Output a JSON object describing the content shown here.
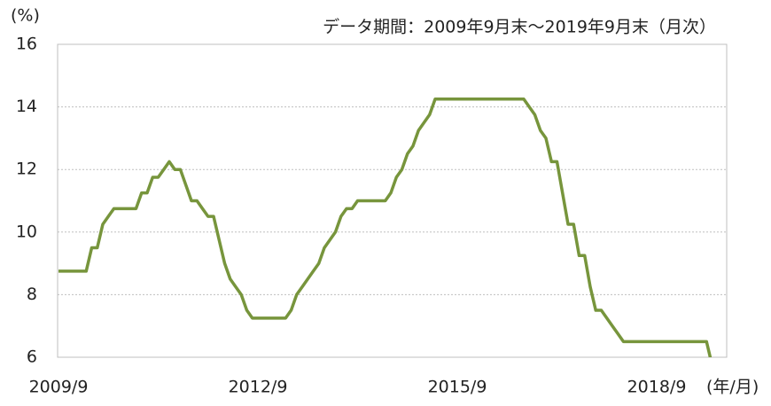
{
  "chart_data": {
    "type": "line",
    "subtitle": "データ期間：2009年9月末～2019年9月末（月次）",
    "y_label": "(%)",
    "x_label": "(年/月)",
    "categories": [
      "2009/9",
      null,
      null,
      null,
      null,
      null,
      null,
      null,
      null,
      null,
      null,
      null,
      null,
      null,
      null,
      null,
      null,
      null,
      null,
      null,
      null,
      null,
      null,
      null,
      null,
      null,
      null,
      null,
      null,
      null,
      null,
      null,
      null,
      null,
      null,
      null,
      "2012/9",
      null,
      null,
      null,
      null,
      null,
      null,
      null,
      null,
      null,
      null,
      null,
      null,
      null,
      null,
      null,
      null,
      null,
      null,
      null,
      null,
      null,
      null,
      null,
      null,
      null,
      null,
      null,
      null,
      null,
      null,
      null,
      null,
      null,
      null,
      null,
      "2015/9",
      null,
      null,
      null,
      null,
      null,
      null,
      null,
      null,
      null,
      null,
      null,
      null,
      null,
      null,
      null,
      null,
      null,
      null,
      null,
      null,
      null,
      null,
      null,
      null,
      null,
      null,
      null,
      null,
      null,
      null,
      null,
      null,
      null,
      null,
      null,
      "2018/9",
      null,
      null,
      null,
      null,
      null,
      null,
      null,
      null,
      null,
      null,
      null,
      null
    ],
    "series": [
      {
        "color": "#77953c",
        "values": [
          8.75,
          8.75,
          8.75,
          8.75,
          8.75,
          8.75,
          9.5,
          9.5,
          10.25,
          10.5,
          10.75,
          10.75,
          10.75,
          10.75,
          10.75,
          11.25,
          11.25,
          11.75,
          11.75,
          12.0,
          12.25,
          12.0,
          12.0,
          11.5,
          11.0,
          11.0,
          10.75,
          10.5,
          10.5,
          9.75,
          9.0,
          8.5,
          8.25,
          8.0,
          7.5,
          7.25,
          7.25,
          7.25,
          7.25,
          7.25,
          7.25,
          7.25,
          7.5,
          8.0,
          8.25,
          8.5,
          8.75,
          9.0,
          9.5,
          9.75,
          10.0,
          10.5,
          10.75,
          10.75,
          11.0,
          11.0,
          11.0,
          11.0,
          11.0,
          11.0,
          11.25,
          11.75,
          12.0,
          12.5,
          12.75,
          13.25,
          13.5,
          13.75,
          14.25,
          14.25,
          14.25,
          14.25,
          14.25,
          14.25,
          14.25,
          14.25,
          14.25,
          14.25,
          14.25,
          14.25,
          14.25,
          14.25,
          14.25,
          14.25,
          14.25,
          14.0,
          13.75,
          13.25,
          13.0,
          12.25,
          12.25,
          11.25,
          10.25,
          10.25,
          9.25,
          9.25,
          8.25,
          7.5,
          7.5,
          7.25,
          7.0,
          6.75,
          6.5,
          6.5,
          6.5,
          6.5,
          6.5,
          6.5,
          6.5,
          6.5,
          6.5,
          6.5,
          6.5,
          6.5,
          6.5,
          6.5,
          6.5,
          6.5,
          5.75,
          5.5,
          5.5
        ]
      }
    ],
    "ylim": [
      6,
      16
    ],
    "yticks": [
      6,
      8,
      10,
      12,
      14,
      16
    ],
    "grid": true
  }
}
